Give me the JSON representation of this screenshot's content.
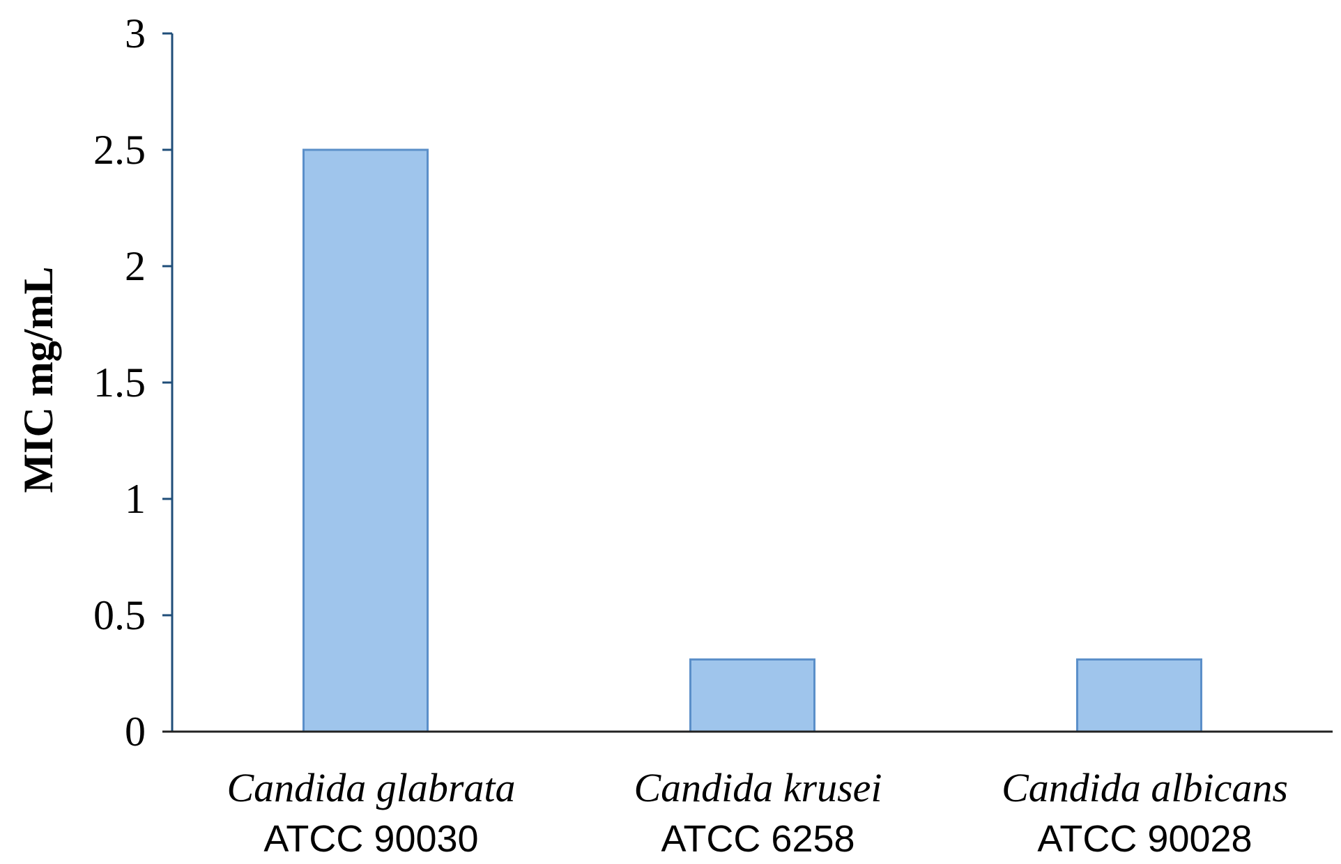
{
  "chart_data": {
    "type": "bar",
    "categories": [
      {
        "species": "Candida glabrata",
        "strain": "ATCC 90030"
      },
      {
        "species": "Candida krusei",
        "strain": "ATCC 6258"
      },
      {
        "species": "Candida albicans",
        "strain": "ATCC 90028"
      }
    ],
    "values": [
      2.5,
      0.31,
      0.31
    ],
    "ylabel": "MIC mg/mL",
    "ylim": [
      0,
      3
    ],
    "yticks": [
      "0",
      "0.5",
      "1",
      "1.5",
      "2",
      "2.5",
      "3"
    ],
    "grid": false,
    "legend": "none",
    "colors": {
      "bar_fill": "#9fc5ec",
      "bar_stroke": "#5b8fc9",
      "axis": "#1f4e79"
    }
  }
}
